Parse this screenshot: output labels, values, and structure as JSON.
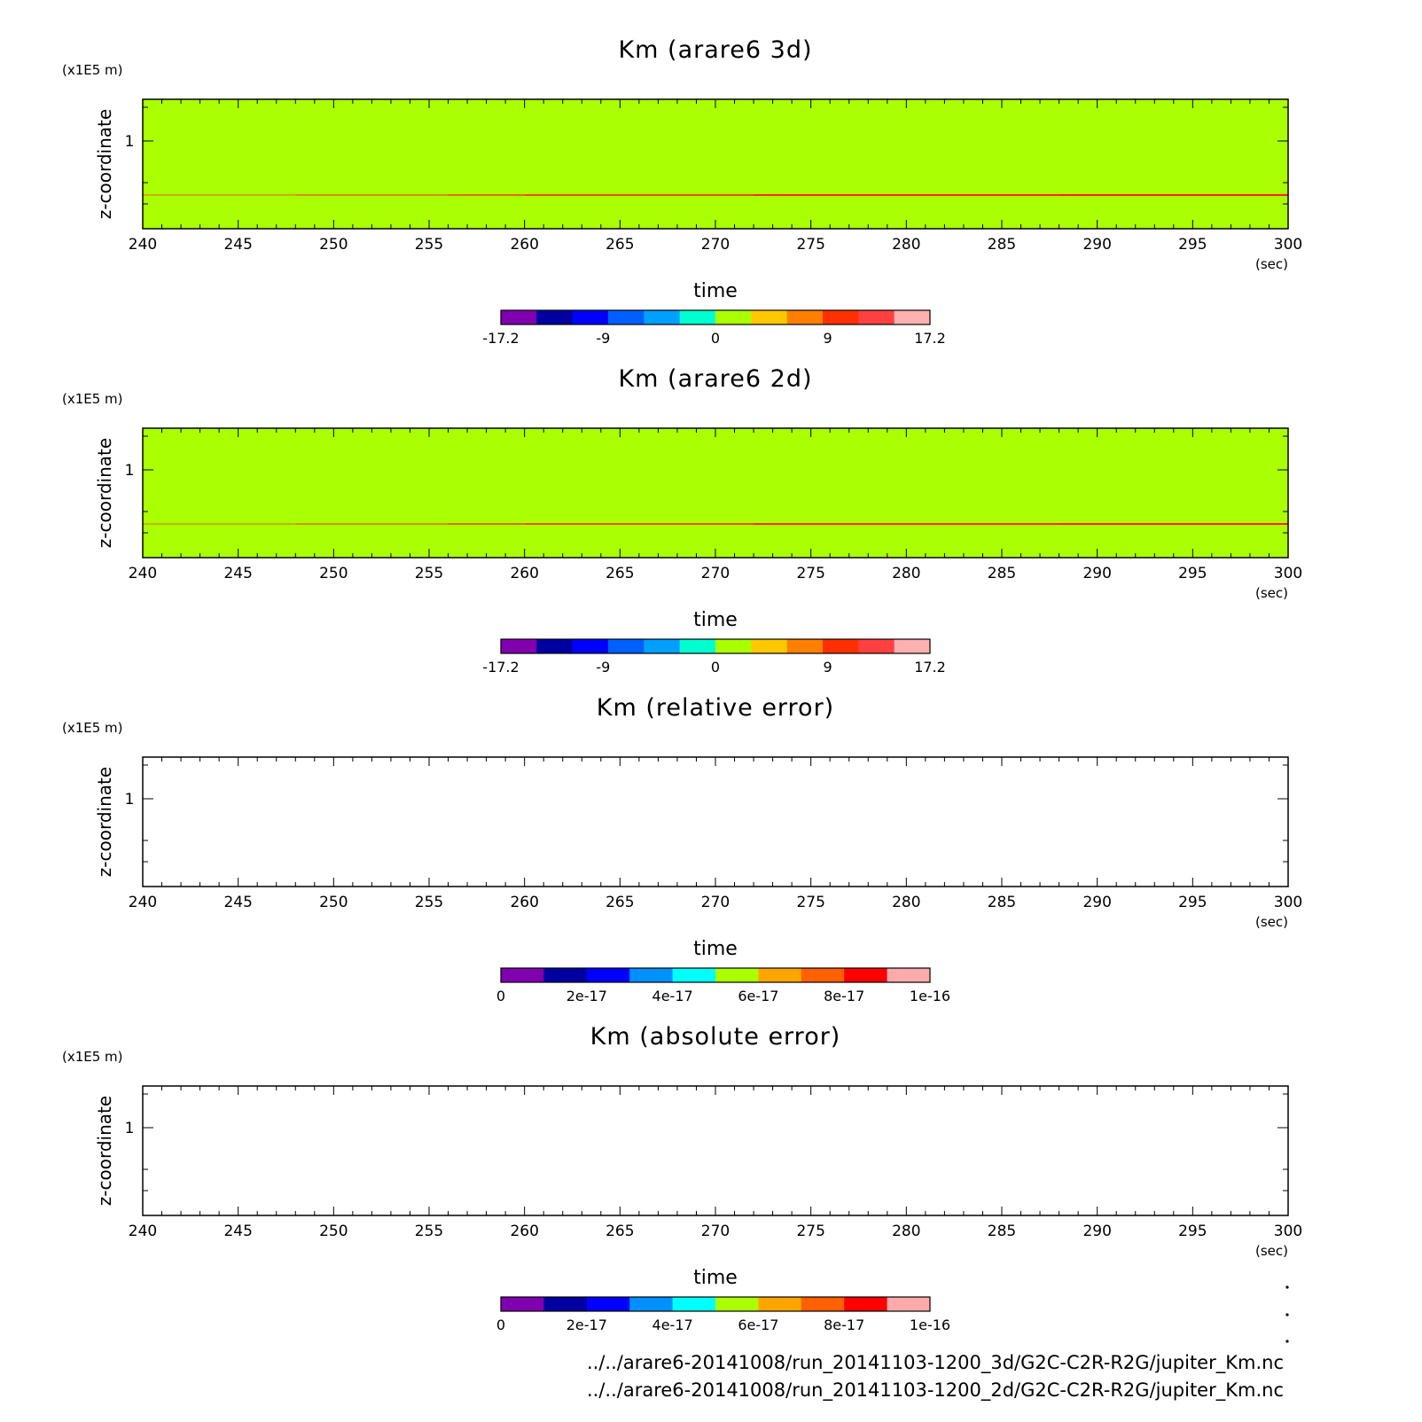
{
  "colors": {
    "contour_scale": [
      "#8000b0",
      "#0000a0",
      "#0000ff",
      "#0060ff",
      "#00a0ff",
      "#00ffd0",
      "#aaff00",
      "#ffc800",
      "#ff8000",
      "#ff3000",
      "#ff4040",
      "#ffb0b0"
    ],
    "error_scale": [
      "#8000b0",
      "#0000a0",
      "#0000ff",
      "#0090ff",
      "#00ffff",
      "#aaff00",
      "#ffa500",
      "#ff6000",
      "#ff0000",
      "#ffaaaa"
    ],
    "band_line": "#ff2000"
  },
  "chart_data": [
    {
      "type": "heatmap",
      "title": "Km (arare6 3d)",
      "xlabel": "time",
      "x_unit": "(sec)",
      "ylabel": "z-coordinate",
      "y_unit": "(x1E5 m)",
      "xlim": [
        240,
        300
      ],
      "x_ticks": [
        "240",
        "245",
        "250",
        "255",
        "260",
        "265",
        "270",
        "275",
        "280",
        "285",
        "290",
        "295",
        "300"
      ],
      "y_ticks": [
        "1"
      ],
      "field": "nearly uniform value near 0, thin positive band at z≈0.6",
      "colorbar": {
        "labels": [
          "-17.2",
          "-9",
          "0",
          "9",
          "17.2"
        ],
        "bins": 12
      }
    },
    {
      "type": "heatmap",
      "title": "Km (arare6 2d)",
      "xlabel": "time",
      "x_unit": "(sec)",
      "ylabel": "z-coordinate",
      "y_unit": "(x1E5 m)",
      "xlim": [
        240,
        300
      ],
      "x_ticks": [
        "240",
        "245",
        "250",
        "255",
        "260",
        "265",
        "270",
        "275",
        "280",
        "285",
        "290",
        "295",
        "300"
      ],
      "y_ticks": [
        "1"
      ],
      "field": "nearly uniform value near 0, thin positive band at z≈0.6",
      "colorbar": {
        "labels": [
          "-17.2",
          "-9",
          "0",
          "9",
          "17.2"
        ],
        "bins": 12
      }
    },
    {
      "type": "heatmap",
      "title": "Km (relative error)",
      "xlabel": "time",
      "x_unit": "(sec)",
      "ylabel": "z-coordinate",
      "y_unit": "(x1E5 m)",
      "xlim": [
        240,
        300
      ],
      "x_ticks": [
        "240",
        "245",
        "250",
        "255",
        "260",
        "265",
        "270",
        "275",
        "280",
        "285",
        "290",
        "295",
        "300"
      ],
      "y_ticks": [
        "1"
      ],
      "field": "empty (no values plotted)",
      "colorbar": {
        "labels": [
          "0",
          "2e-17",
          "4e-17",
          "6e-17",
          "8e-17",
          "1e-16"
        ],
        "bins": 10
      }
    },
    {
      "type": "heatmap",
      "title": "Km (absolute error)",
      "xlabel": "time",
      "x_unit": "(sec)",
      "ylabel": "z-coordinate",
      "y_unit": "(x1E5 m)",
      "xlim": [
        240,
        300
      ],
      "x_ticks": [
        "240",
        "245",
        "250",
        "255",
        "260",
        "265",
        "270",
        "275",
        "280",
        "285",
        "290",
        "295",
        "300"
      ],
      "y_ticks": [
        "1"
      ],
      "field": "empty (no values plotted)",
      "colorbar": {
        "labels": [
          "0",
          "2e-17",
          "4e-17",
          "6e-17",
          "8e-17",
          "1e-16"
        ],
        "bins": 10
      }
    }
  ],
  "footer": {
    "line1": "../../arare6-20141008/run_20141103-1200_3d/G2C-C2R-R2G/jupiter_Km.nc",
    "line2": "../../arare6-20141008/run_20141103-1200_2d/G2C-C2R-R2G/jupiter_Km.nc"
  }
}
